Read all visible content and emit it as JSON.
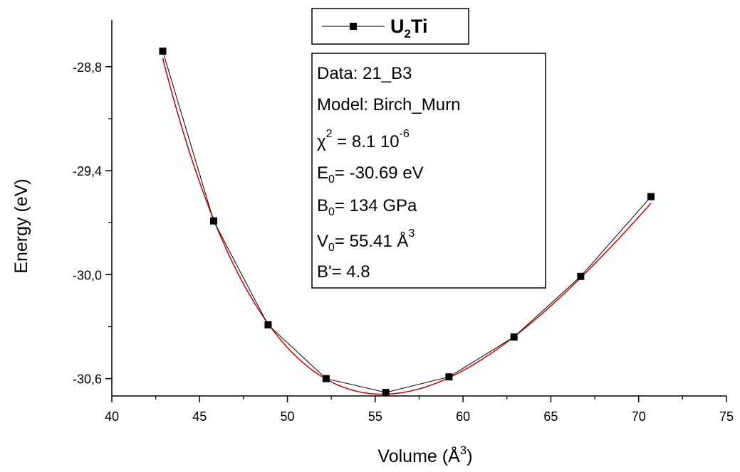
{
  "chart_data": {
    "type": "scatter",
    "xlabel": "Volume (Å",
    "xlabel_sup": "3",
    "xlabel_close": ")",
    "ylabel": "Energy (eV)",
    "xlim": [
      40,
      75
    ],
    "ylim": [
      -30.7,
      -28.53
    ],
    "x_ticks": [
      40,
      45,
      50,
      55,
      60,
      65,
      70,
      75
    ],
    "x_tick_labels": [
      "40",
      "45",
      "50",
      "55",
      "60",
      "65",
      "70",
      "75"
    ],
    "y_ticks": [
      -28.8,
      -29.4,
      -30.0,
      -30.6
    ],
    "y_tick_labels": [
      "-28,8",
      "-29,4",
      "-30,0",
      "-30,6"
    ],
    "grid": false,
    "legend": {
      "position": "top-center",
      "label_main": "U",
      "label_sub": "2",
      "label_rest": "Ti"
    },
    "fit_box": {
      "data": "Data: 21_B3",
      "model": "Model: Birch_Murn",
      "chi_pre": "χ",
      "chi_sup": "2",
      "chi_mid": " = 8.1 10",
      "chi_exp": "-6",
      "e0_pre": "E",
      "e0_sub": "0",
      "e0_rest": "= -30.69 eV",
      "b0_pre": "B",
      "b0_sub": "0",
      "b0_rest": "= 134 GPa",
      "v0_pre": "V",
      "v0_sub": "0",
      "v0_rest": "= 55.41 Å",
      "v0_sup": "3",
      "bprime": "B'= 4.8"
    },
    "series": [
      {
        "name": "U2Ti",
        "color": "#000000",
        "marker": "square",
        "x": [
          42.9,
          45.8,
          48.9,
          52.2,
          55.6,
          59.2,
          62.9,
          66.7,
          70.7
        ],
        "y": [
          -28.71,
          -29.69,
          -30.29,
          -30.6,
          -30.68,
          -30.59,
          -30.36,
          -30.01,
          -29.55
        ]
      }
    ],
    "fit_curve": {
      "color": "#cc0000",
      "model": "Birch-Murnaghan",
      "E0": -30.69,
      "B0_GPa": 134,
      "V0": 55.41,
      "Bprime": 4.8
    }
  }
}
